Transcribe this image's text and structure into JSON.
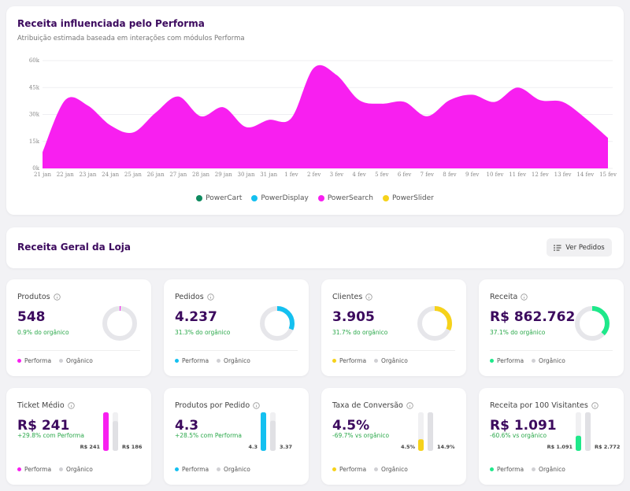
{
  "chart_data": {
    "type": "area",
    "title": "Receita influenciada pelo Performa",
    "subtitle": "Atribuição estimada baseada em interações com módulos Performa",
    "categories": [
      "21 jan",
      "22 jan",
      "23 jan",
      "24 jan",
      "25 jan",
      "26 jan",
      "27 jan",
      "28 jan",
      "29 jan",
      "30 jan",
      "31 jan",
      "1 fev",
      "2 fev",
      "3 fev",
      "4 fev",
      "5 fev",
      "6 fev",
      "7 fev",
      "8 fev",
      "9 fev",
      "10 fev",
      "11 fev",
      "12 fev",
      "13 fev",
      "14 fev",
      "15 fev"
    ],
    "series": [
      {
        "name": "PowerSearch",
        "color": "#f81ff0",
        "values": [
          9,
          38,
          35,
          24,
          20,
          31,
          40,
          29,
          34,
          23,
          27,
          28,
          56,
          52,
          38,
          36,
          37,
          29,
          38,
          41,
          37,
          45,
          38,
          37,
          28,
          17
        ]
      }
    ],
    "legend": [
      {
        "name": "PowerCart",
        "color": "#0e8a5f"
      },
      {
        "name": "PowerDisplay",
        "color": "#14c0f0"
      },
      {
        "name": "PowerSearch",
        "color": "#f81ff0"
      },
      {
        "name": "PowerSlider",
        "color": "#f6d21a"
      }
    ],
    "ylim": [
      0,
      60
    ],
    "yticks": [
      {
        "value": 0,
        "label": "0k"
      },
      {
        "value": 15,
        "label": "15k"
      },
      {
        "value": 30,
        "label": "30k"
      },
      {
        "value": 45,
        "label": "45k"
      },
      {
        "value": 60,
        "label": "60k"
      }
    ],
    "grid": true
  },
  "section": {
    "title": "Receita Geral da Loja",
    "button": "Ver Pedidos"
  },
  "kpi_cards": [
    {
      "title": "Produtos",
      "value": "548",
      "note": "0.9% do orgânico",
      "share": 0.9,
      "color": "#f81ff0",
      "legend": [
        "Performa",
        "Orgânico"
      ]
    },
    {
      "title": "Pedidos",
      "value": "4.237",
      "note": "31.3% do orgânico",
      "share": 31.3,
      "color": "#14c0f0",
      "legend": [
        "Performa",
        "Orgânico"
      ]
    },
    {
      "title": "Clientes",
      "value": "3.905",
      "note": "31.7% do orgânico",
      "share": 31.7,
      "color": "#f6d21a",
      "legend": [
        "Performa",
        "Orgânico"
      ]
    },
    {
      "title": "Receita",
      "value": "R$ 862.762",
      "note": "37.1% do orgânico",
      "share": 37.1,
      "color": "#1ee88a",
      "legend": [
        "Performa",
        "Orgânico"
      ]
    }
  ],
  "bar_cards": [
    {
      "title": "Ticket Médio",
      "value": "R$ 241",
      "note": "+29.8% com Performa",
      "color": "#f81ff0",
      "values": [
        241,
        186
      ],
      "value_labels": [
        "R$ 241",
        "R$ 186"
      ],
      "legend": [
        "Performa",
        "Orgânico"
      ]
    },
    {
      "title": "Produtos por Pedido",
      "value": "4.3",
      "note": "+28.5% com Performa",
      "color": "#14c0f0",
      "values": [
        4.3,
        3.37
      ],
      "legend": [
        "Performa",
        "Orgânico"
      ]
    },
    {
      "title": "Taxa de Conversão",
      "value": "4.5%",
      "note": "-69.7% vs orgânico",
      "color": "#f6d21a",
      "values": [
        4.5,
        14.9
      ],
      "value_labels": [
        "4.5%",
        "14.9%"
      ],
      "legend": [
        "Performa",
        "Orgânico"
      ]
    },
    {
      "title": "Receita por 100 Visitantes",
      "value": "R$ 1.091",
      "note": "-60.6% vs orgânico",
      "color": "#1ee88a",
      "values": [
        1091,
        2772
      ],
      "value_labels": [
        "R$ 1.091",
        "R$ 2.772"
      ],
      "legend": [
        "Performa",
        "Orgânico"
      ]
    }
  ]
}
